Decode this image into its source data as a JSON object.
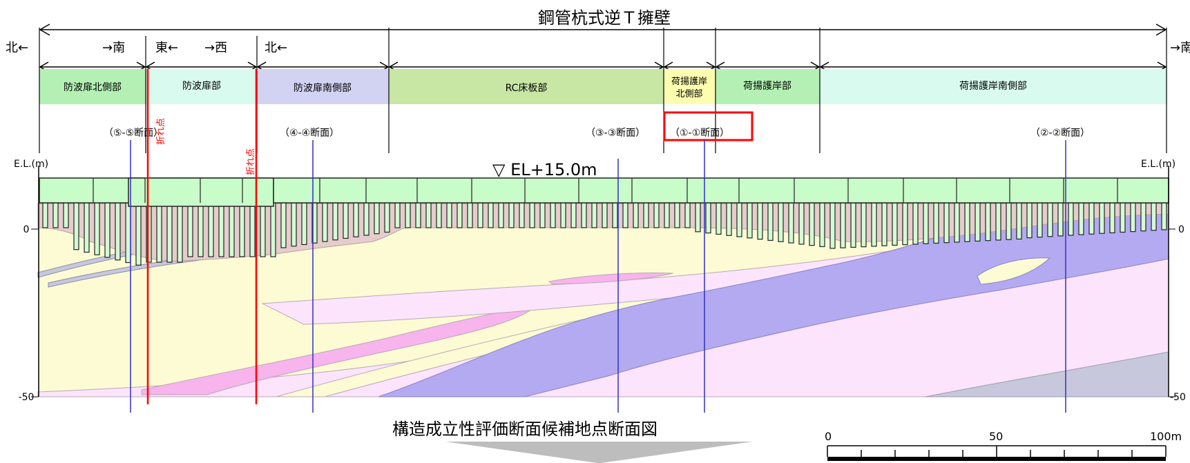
{
  "title": "鋼管杭式逆Ｔ擁壁",
  "direction_labels": {
    "left_north": "北←",
    "to_south": "→南",
    "east": "東←",
    "to_west": "→西",
    "north2": "北←",
    "right_south": "→南"
  },
  "segments": [
    {
      "label": "防波扉北側部",
      "fill": "#b4f0b4"
    },
    {
      "label": "防波扉部",
      "fill": "#d9fbef"
    },
    {
      "label": "防波扉南側部",
      "fill": "#d2d2f2"
    },
    {
      "label": "RC床板部",
      "fill": "#c8e6a4"
    },
    {
      "label1": "荷揚護岸",
      "label2": "北側部",
      "fill": "#fdfdb0"
    },
    {
      "label": "荷揚護岸部",
      "fill": "#b4f0b4"
    },
    {
      "label": "荷揚護岸南側部",
      "fill": "#d9fbef"
    }
  ],
  "sections": [
    "（⑤-⑤断面）",
    "（④-④断面）",
    "（③-③断面）",
    "（①-①断面）",
    "（②-②断面）"
  ],
  "bend_point_label": "折れ点",
  "el_label": "E.L.(m)",
  "el_marker": "▽ EL+15.0m",
  "y_ticks": [
    "0",
    "-50"
  ],
  "caption": "構造成立性評価断面候補地点断面図",
  "scale": {
    "labels": [
      "0",
      "50",
      "100m"
    ]
  },
  "colors": {
    "section_line": "#3030c0",
    "bend_line": "#ff0000",
    "highlight_box": "#ff0000",
    "soil_fill": "#e6cccc",
    "layer_yellow": "#fdfbd4",
    "layer_pink_light": "#fce4fc",
    "layer_pink": "#f8b4ec",
    "layer_purple": "#b4aaf2",
    "layer_gray": "#c8c8dc",
    "cap_fill": "#c8fcc8",
    "pile_fill": "#d4fcd4"
  }
}
